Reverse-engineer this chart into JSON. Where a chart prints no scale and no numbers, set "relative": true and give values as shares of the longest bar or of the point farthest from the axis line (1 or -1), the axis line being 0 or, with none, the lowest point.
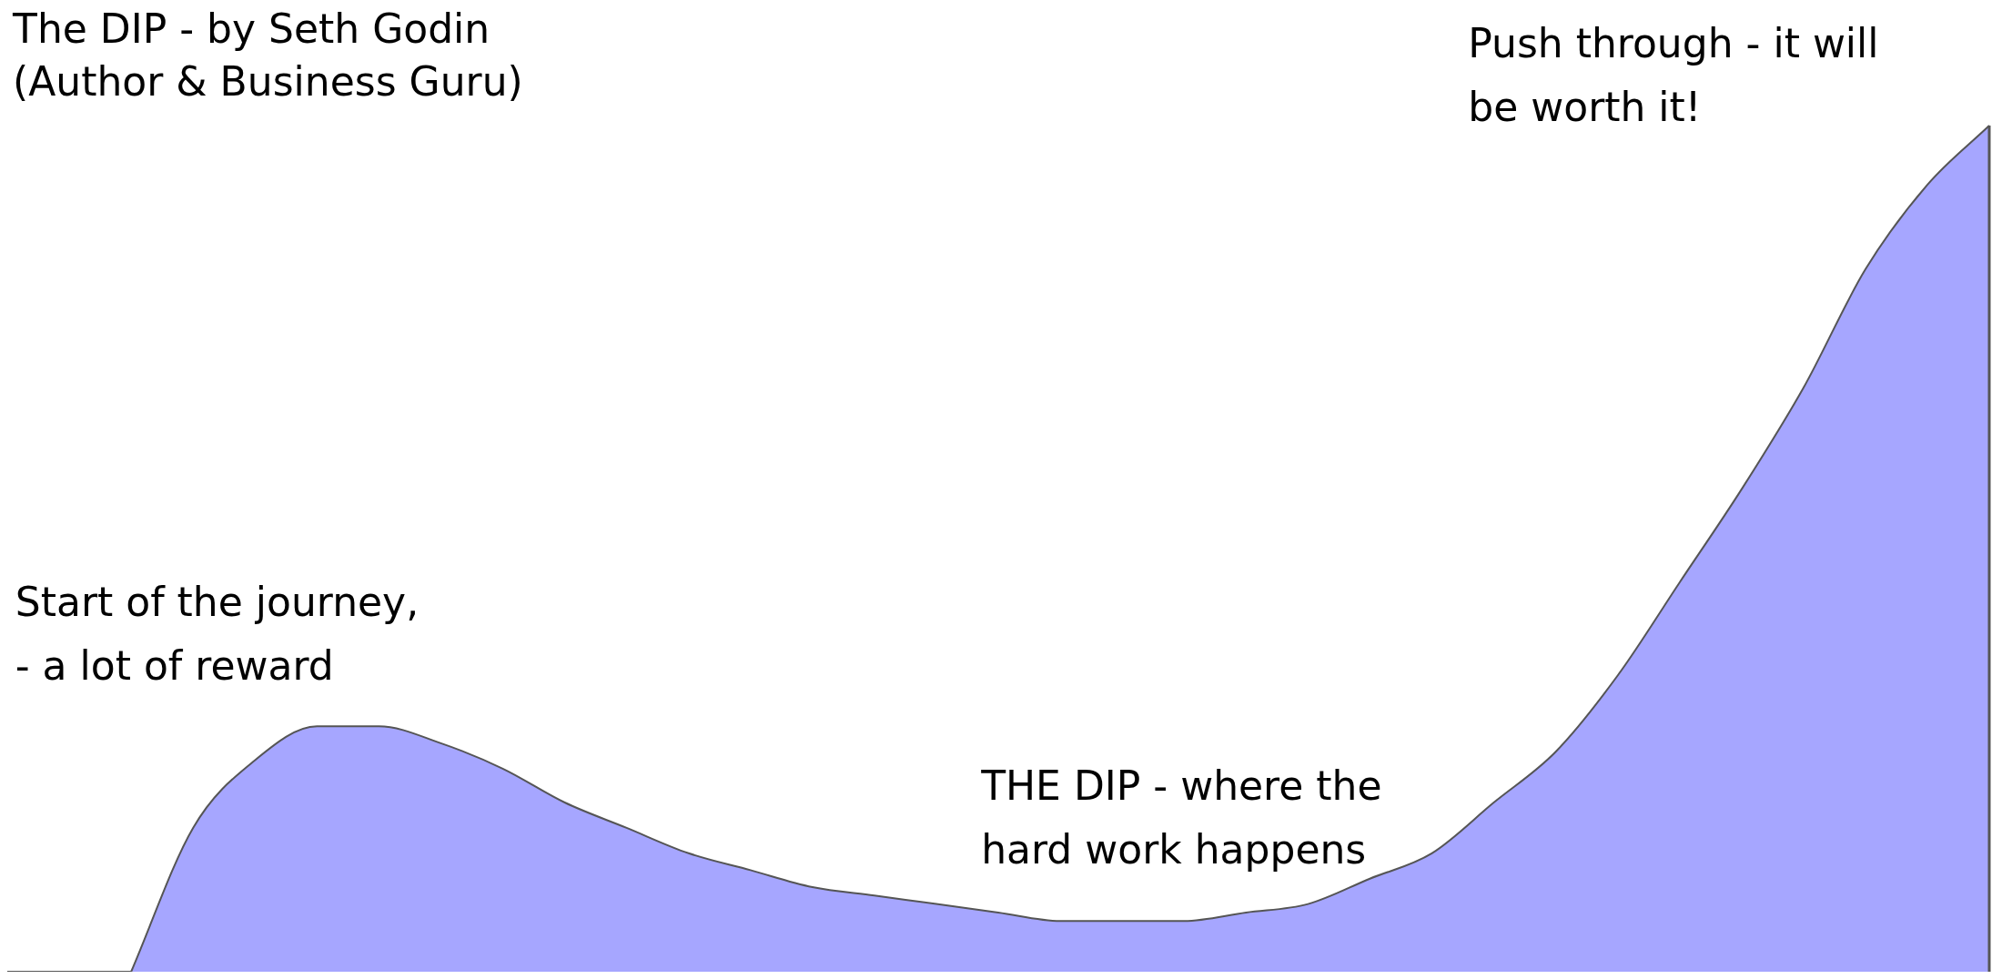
{
  "chart_data": {
    "type": "area",
    "title": "The DIP - by Seth Godin",
    "subtitle": "(Author & Business Guru)",
    "relative": true,
    "grid": false,
    "legend": false,
    "annotations": [
      "Start of the journey,\n- a lot of reward",
      "THE DIP - where the\nhard work happens",
      "Push through - it will\nbe worth it!"
    ],
    "categories": [
      null,
      null,
      null,
      null,
      null,
      null,
      null,
      null,
      null,
      null,
      null,
      null,
      null,
      null,
      null,
      null,
      null,
      null,
      null,
      null,
      null,
      null,
      null,
      null,
      null,
      null,
      null,
      null,
      null,
      null,
      null,
      null,
      null
    ],
    "series": [
      {
        "color": "#a6a6ff",
        "values": [
          null,
          null,
          0,
          0.17,
          0.25,
          0.29,
          0.29,
          0.27,
          0.24,
          0.2,
          0.17,
          0.14,
          0.12,
          0.1,
          0.09,
          0.08,
          0.07,
          0.06,
          0.06,
          0.06,
          0.07,
          0.08,
          0.11,
          0.14,
          0.2,
          0.26,
          0.35,
          0.46,
          0.57,
          0.69,
          0.83,
          0.93,
          1
        ]
      }
    ]
  }
}
